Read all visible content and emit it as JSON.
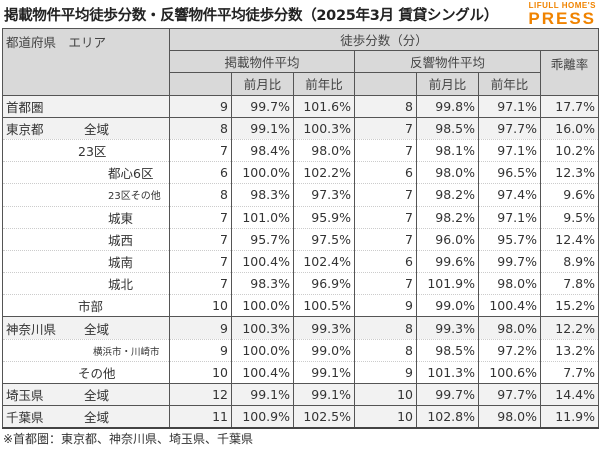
{
  "title": "掲載物件平均徒歩分数・反響物件平均徒歩分数（2025年3月 賃貸シングル）",
  "logo": {
    "small": "LIFULL HOME'S",
    "big": "PRESS"
  },
  "header": {
    "area": "都道府県　エリア",
    "walk": "徒歩分数（分）",
    "listed": "掲載物件平均",
    "response": "反響物件平均",
    "gap": "乖離率",
    "mom": "前月比",
    "yoy": "前年比"
  },
  "rows": [
    {
      "pref": "首都圏",
      "area": "",
      "indent": 0,
      "top": true,
      "v": [
        "9",
        "99.7%",
        "101.6%",
        "8",
        "99.8%",
        "97.1%",
        "17.7%"
      ]
    },
    {
      "pref": "東京都",
      "area": "全域",
      "indent": 0,
      "top": true,
      "v": [
        "8",
        "99.1%",
        "100.3%",
        "7",
        "98.5%",
        "97.7%",
        "16.0%"
      ]
    },
    {
      "pref": "",
      "area": "23区",
      "indent": 1,
      "v": [
        "7",
        "98.4%",
        "98.0%",
        "7",
        "98.1%",
        "97.1%",
        "10.2%"
      ]
    },
    {
      "pref": "",
      "area": "都心6区",
      "indent": 2,
      "v": [
        "6",
        "100.0%",
        "102.2%",
        "6",
        "98.0%",
        "96.5%",
        "12.3%"
      ]
    },
    {
      "pref": "",
      "area": "23区その他",
      "indent": 2,
      "v": [
        "8",
        "98.3%",
        "97.3%",
        "7",
        "98.2%",
        "97.4%",
        "9.6%"
      ]
    },
    {
      "pref": "",
      "area": "城東",
      "indent": 2,
      "v": [
        "7",
        "101.0%",
        "95.9%",
        "7",
        "98.2%",
        "97.1%",
        "9.5%"
      ]
    },
    {
      "pref": "",
      "area": "城西",
      "indent": 2,
      "v": [
        "7",
        "95.7%",
        "97.5%",
        "7",
        "96.0%",
        "95.7%",
        "12.4%"
      ]
    },
    {
      "pref": "",
      "area": "城南",
      "indent": 2,
      "v": [
        "7",
        "100.4%",
        "102.4%",
        "6",
        "99.6%",
        "99.7%",
        "8.9%"
      ]
    },
    {
      "pref": "",
      "area": "城北",
      "indent": 2,
      "v": [
        "7",
        "98.3%",
        "96.9%",
        "7",
        "101.9%",
        "98.0%",
        "7.8%"
      ]
    },
    {
      "pref": "",
      "area": "市部",
      "indent": 1,
      "v": [
        "10",
        "100.0%",
        "100.5%",
        "9",
        "99.0%",
        "100.4%",
        "15.2%"
      ]
    },
    {
      "pref": "神奈川県",
      "area": "全域",
      "indent": 0,
      "top": true,
      "v": [
        "9",
        "100.3%",
        "99.3%",
        "8",
        "99.3%",
        "98.0%",
        "12.2%"
      ]
    },
    {
      "pref": "",
      "area": "横浜市・川崎市",
      "indent": 3,
      "v": [
        "9",
        "100.0%",
        "99.0%",
        "8",
        "98.5%",
        "97.2%",
        "13.2%"
      ]
    },
    {
      "pref": "",
      "area": "その他",
      "indent": 1,
      "v": [
        "10",
        "100.4%",
        "99.1%",
        "9",
        "101.3%",
        "100.6%",
        "7.7%"
      ]
    },
    {
      "pref": "埼玉県",
      "area": "全域",
      "indent": 0,
      "top": true,
      "v": [
        "12",
        "99.1%",
        "99.1%",
        "10",
        "99.7%",
        "97.7%",
        "14.4%"
      ]
    },
    {
      "pref": "千葉県",
      "area": "全域",
      "indent": 0,
      "top": true,
      "v": [
        "11",
        "100.9%",
        "102.5%",
        "10",
        "102.8%",
        "98.0%",
        "11.9%"
      ]
    }
  ],
  "footnote": "※首都圏：東京都、神奈川県、埼玉県、千葉県"
}
